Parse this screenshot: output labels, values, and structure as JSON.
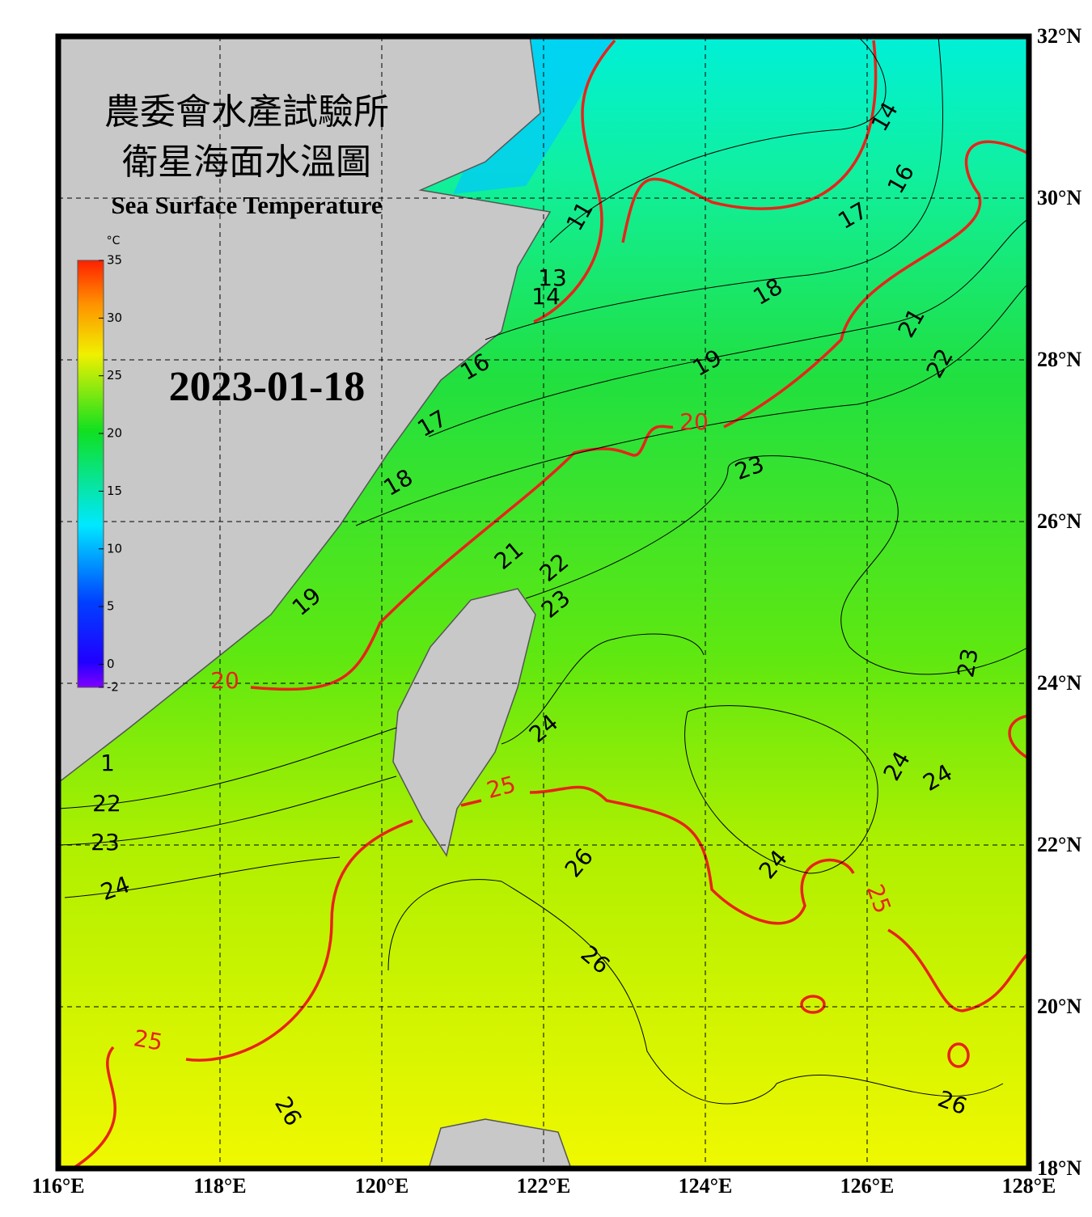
{
  "header": {
    "title_lines": [
      "農委會水產試驗所",
      "衛星海面水溫圖"
    ],
    "subtitle": "Sea Surface Temperature",
    "date": "2023-01-18"
  },
  "colorbar": {
    "unit": "°C",
    "range": [
      -2,
      35
    ],
    "ticks": [
      -2,
      0,
      5,
      10,
      15,
      20,
      25,
      30,
      35
    ]
  },
  "map": {
    "lon_range": [
      116,
      128
    ],
    "lat_range": [
      18,
      32
    ],
    "lon_ticks": [
      {
        "value": 116,
        "label": "116°E"
      },
      {
        "value": 118,
        "label": "118°E"
      },
      {
        "value": 120,
        "label": "120°E"
      },
      {
        "value": 122,
        "label": "122°E"
      },
      {
        "value": 124,
        "label": "124°E"
      },
      {
        "value": 126,
        "label": "126°E"
      },
      {
        "value": 128,
        "label": "128°E"
      }
    ],
    "lat_ticks": [
      {
        "value": 18,
        "label": "18°N"
      },
      {
        "value": 20,
        "label": "20°N"
      },
      {
        "value": 22,
        "label": "22°N"
      },
      {
        "value": 24,
        "label": "24°N"
      },
      {
        "value": 26,
        "label": "26°N"
      },
      {
        "value": 28,
        "label": "28°N"
      },
      {
        "value": 30,
        "label": "30°N"
      },
      {
        "value": 32,
        "label": "32°N"
      }
    ],
    "contour_labels": [
      {
        "text": "14",
        "color": "#000000"
      },
      {
        "text": "16",
        "color": "#000000"
      },
      {
        "text": "17",
        "color": "#000000"
      },
      {
        "text": "11",
        "color": "#000000"
      },
      {
        "text": "13",
        "color": "#000000"
      },
      {
        "text": "14",
        "color": "#000000"
      },
      {
        "text": "16",
        "color": "#000000"
      },
      {
        "text": "18",
        "color": "#000000"
      },
      {
        "text": "19",
        "color": "#000000"
      },
      {
        "text": "21",
        "color": "#000000"
      },
      {
        "text": "22",
        "color": "#000000"
      },
      {
        "text": "20",
        "color": "#e8231a"
      },
      {
        "text": "17",
        "color": "#000000"
      },
      {
        "text": "18",
        "color": "#000000"
      },
      {
        "text": "23",
        "color": "#000000"
      },
      {
        "text": "21",
        "color": "#000000"
      },
      {
        "text": "22",
        "color": "#000000"
      },
      {
        "text": "23",
        "color": "#000000"
      },
      {
        "text": "19",
        "color": "#000000"
      },
      {
        "text": "20",
        "color": "#e8231a"
      },
      {
        "text": "23",
        "color": "#000000"
      },
      {
        "text": "24",
        "color": "#000000"
      },
      {
        "text": "1",
        "color": "#000000"
      },
      {
        "text": "22",
        "color": "#000000"
      },
      {
        "text": "23",
        "color": "#000000"
      },
      {
        "text": "24",
        "color": "#000000"
      },
      {
        "text": "25",
        "color": "#e8231a"
      },
      {
        "text": "24",
        "color": "#000000"
      },
      {
        "text": "24",
        "color": "#000000"
      },
      {
        "text": "24",
        "color": "#000000"
      },
      {
        "text": "26",
        "color": "#000000"
      },
      {
        "text": "25",
        "color": "#e8231a"
      },
      {
        "text": "26",
        "color": "#000000"
      },
      {
        "text": "25",
        "color": "#e8231a"
      },
      {
        "text": "26",
        "color": "#000000"
      },
      {
        "text": "26",
        "color": "#000000"
      }
    ]
  }
}
